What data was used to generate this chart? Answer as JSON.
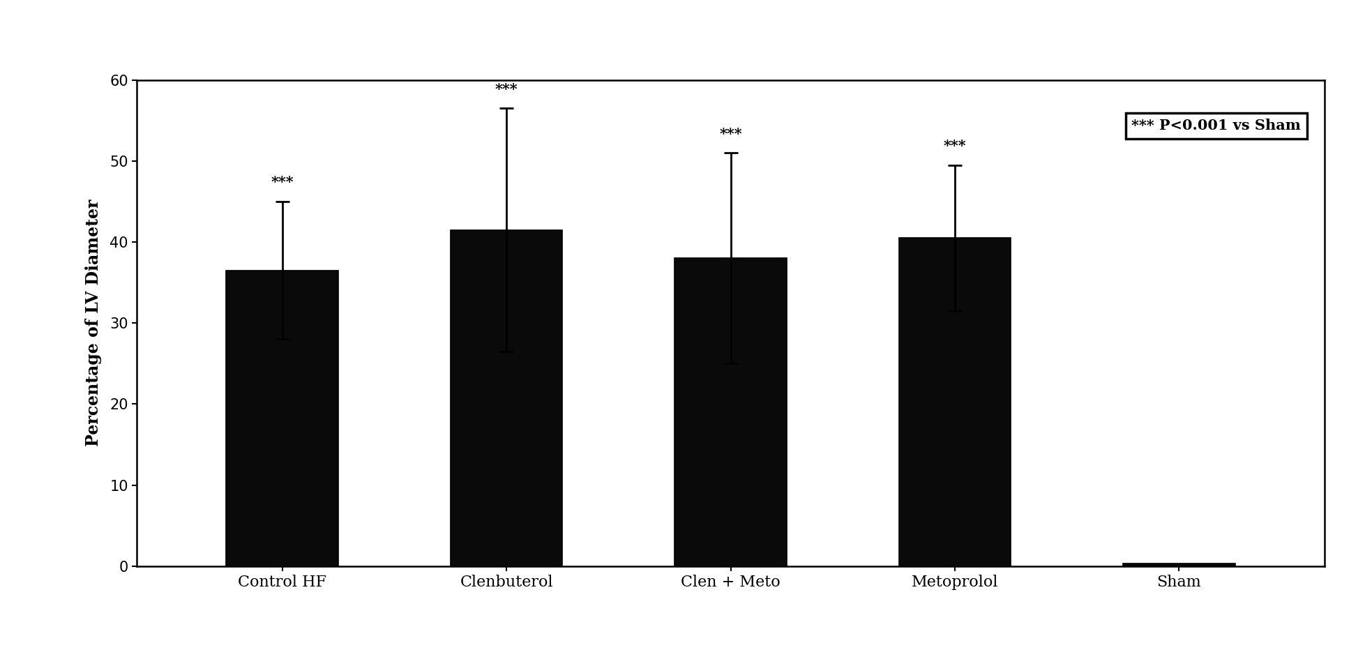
{
  "categories": [
    "Control HF",
    "Clenbuterol",
    "Clen + Meto",
    "Metoprolol",
    "Sham"
  ],
  "values": [
    36.5,
    41.5,
    38.0,
    40.5,
    0.3
  ],
  "errors": [
    8.5,
    15.0,
    13.0,
    9.0,
    0.0
  ],
  "bar_color": "#0a0a0a",
  "bar_width": 0.5,
  "ylabel": "Percentage of LV Diameter",
  "ylim": [
    0,
    60
  ],
  "yticks": [
    0,
    10,
    20,
    30,
    40,
    50,
    60
  ],
  "significance": [
    "***",
    "***",
    "***",
    "***",
    null
  ],
  "legend_text": "*** P<0.001 vs Sham",
  "background_color": "#ffffff",
  "figure_bg": "#ffffff",
  "label_fontsize": 17,
  "tick_fontsize": 15,
  "sig_fontsize": 15,
  "legend_fontsize": 15
}
